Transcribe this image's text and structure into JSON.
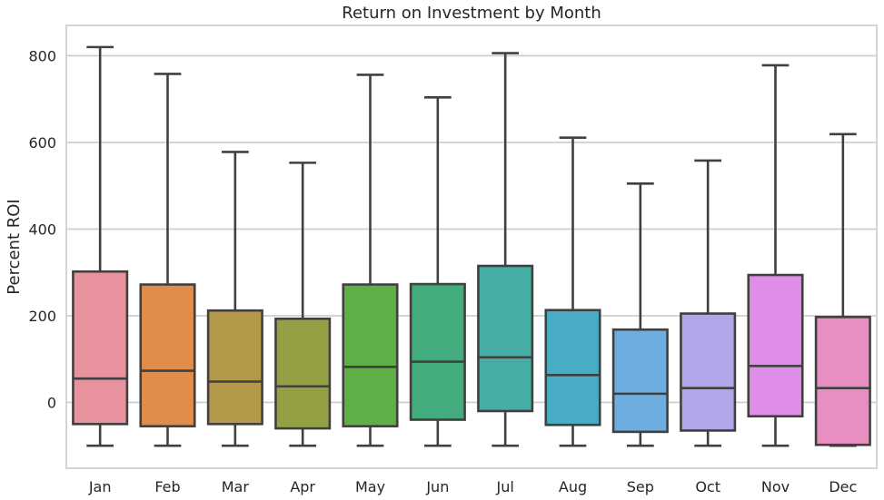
{
  "chart_data": {
    "type": "box",
    "title": "Return on Investment by Month",
    "xlabel": "",
    "ylabel": "Percent ROI",
    "ylim": [
      -152,
      870
    ],
    "yticks": [
      0,
      200,
      400,
      600,
      800
    ],
    "grid": true,
    "categories": [
      "Jan",
      "Feb",
      "Mar",
      "Apr",
      "May",
      "Jun",
      "Jul",
      "Aug",
      "Sep",
      "Oct",
      "Nov",
      "Dec"
    ],
    "boxes": [
      {
        "label": "Jan",
        "whisker_low": -100,
        "q1": -50,
        "median": 55,
        "q3": 302,
        "whisker_high": 820,
        "color": "#e8929d"
      },
      {
        "label": "Feb",
        "whisker_low": -100,
        "q1": -55,
        "median": 73,
        "q3": 272,
        "whisker_high": 758,
        "color": "#e08d4c"
      },
      {
        "label": "Mar",
        "whisker_low": -100,
        "q1": -50,
        "median": 48,
        "q3": 212,
        "whisker_high": 578,
        "color": "#b4984a"
      },
      {
        "label": "Apr",
        "whisker_low": -100,
        "q1": -60,
        "median": 37,
        "q3": 193,
        "whisker_high": 553,
        "color": "#94a043"
      },
      {
        "label": "May",
        "whisker_low": -100,
        "q1": -55,
        "median": 82,
        "q3": 272,
        "whisker_high": 756,
        "color": "#5eaf45"
      },
      {
        "label": "Jun",
        "whisker_low": -100,
        "q1": -40,
        "median": 94,
        "q3": 273,
        "whisker_high": 704,
        "color": "#43ac7d"
      },
      {
        "label": "Jul",
        "whisker_low": -100,
        "q1": -20,
        "median": 104,
        "q3": 315,
        "whisker_high": 806,
        "color": "#47ada4"
      },
      {
        "label": "Aug",
        "whisker_low": -100,
        "q1": -52,
        "median": 63,
        "q3": 213,
        "whisker_high": 611,
        "color": "#47acc4"
      },
      {
        "label": "Sep",
        "whisker_low": -100,
        "q1": -68,
        "median": 20,
        "q3": 168,
        "whisker_high": 505,
        "color": "#6daddf"
      },
      {
        "label": "Oct",
        "whisker_low": -100,
        "q1": -65,
        "median": 33,
        "q3": 205,
        "whisker_high": 558,
        "color": "#b3a6e8"
      },
      {
        "label": "Nov",
        "whisker_low": -100,
        "q1": -32,
        "median": 84,
        "q3": 294,
        "whisker_high": 778,
        "color": "#de8ee7"
      },
      {
        "label": "Dec",
        "whisker_low": -100,
        "q1": -98,
        "median": 33,
        "q3": 197,
        "whisker_high": 619,
        "color": "#e88fc2"
      }
    ],
    "colors": {
      "box_edge": "#404040",
      "grid": "#cccccc",
      "axes_edge": "#cccccc"
    }
  }
}
